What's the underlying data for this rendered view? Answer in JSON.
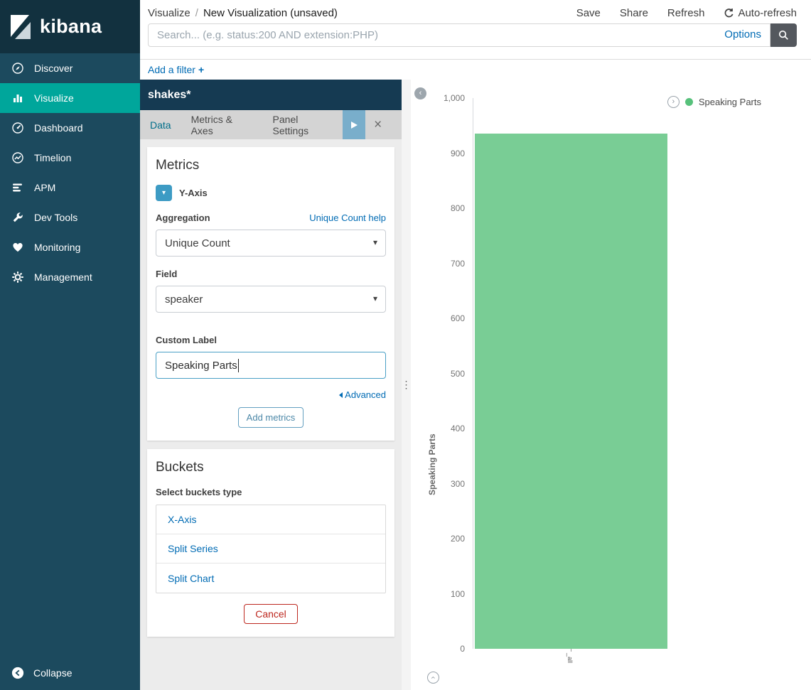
{
  "app": {
    "logo_text": "kibana"
  },
  "sidebar": {
    "items": [
      {
        "label": "Discover",
        "icon": "discover-icon"
      },
      {
        "label": "Visualize",
        "icon": "visualize-icon",
        "active": true
      },
      {
        "label": "Dashboard",
        "icon": "dashboard-icon"
      },
      {
        "label": "Timelion",
        "icon": "timelion-icon"
      },
      {
        "label": "APM",
        "icon": "apm-icon"
      },
      {
        "label": "Dev Tools",
        "icon": "devtools-icon"
      },
      {
        "label": "Monitoring",
        "icon": "monitoring-icon"
      },
      {
        "label": "Management",
        "icon": "management-icon"
      }
    ],
    "collapse_label": "Collapse"
  },
  "topbar": {
    "breadcrumb_section": "Visualize",
    "breadcrumb_separator": "/",
    "breadcrumb_page": "New Visualization (unsaved)",
    "save_label": "Save",
    "share_label": "Share",
    "refresh_label": "Refresh",
    "auto_refresh_label": "Auto-refresh"
  },
  "search": {
    "placeholder": "Search... (e.g. status:200 AND extension:PHP)",
    "options_label": "Options"
  },
  "filter_bar": {
    "add_filter_label": "Add a filter",
    "plus": "+"
  },
  "editor": {
    "index_pattern": "shakes*",
    "tabs": {
      "data": "Data",
      "metrics_axes": "Metrics & Axes",
      "panel_settings": "Panel Settings"
    },
    "metrics": {
      "title": "Metrics",
      "y_axis_toggle_label": "Y-Axis",
      "aggregation_label": "Aggregation",
      "aggregation_help_link": "Unique Count help",
      "aggregation_value": "Unique Count",
      "field_label": "Field",
      "field_value": "speaker",
      "custom_label_label": "Custom Label",
      "custom_label_value": "Speaking Parts",
      "advanced_link": "Advanced",
      "add_metrics_button": "Add metrics"
    },
    "buckets": {
      "title": "Buckets",
      "select_type_label": "Select buckets type",
      "bucket_types": [
        "X-Axis",
        "Split Series",
        "Split Chart"
      ],
      "cancel_button": "Cancel"
    }
  },
  "chart_data": {
    "type": "bar",
    "title": "",
    "categories": [
      "_all"
    ],
    "series": [
      {
        "name": "Speaking Parts",
        "values": [
          935
        ],
        "color": "#57c17b"
      }
    ],
    "xlabel": "",
    "ylabel": "Speaking Parts",
    "ylim": [
      0,
      1000
    ],
    "ytick_step": 100,
    "grid": false,
    "legend_position": "top-right"
  },
  "colors": {
    "sidebar_bg": "#1c4a5e",
    "active_nav": "#00a69b",
    "link_blue": "#006bb4",
    "bar_green": "#57c17b",
    "danger_red": "#bd271e"
  }
}
